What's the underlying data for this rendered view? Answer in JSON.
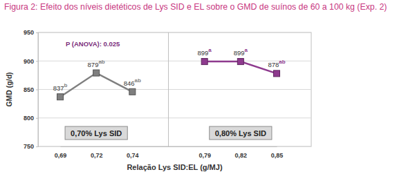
{
  "chart_data": {
    "type": "line",
    "title": "Figura 2: Efeito dos níveis dietéticos de Lys SID e EL sobre o GMD de suínos de 60 a 100 kg (Exp. 2)",
    "x_label": "Relação Lys SID:EL (g/MJ)",
    "y_label": "GMD (g/d)",
    "annotation": "P (ANOVA): 0.025",
    "categories": [
      "0,69",
      "0,72",
      "0,74",
      null,
      "0,79",
      "0,82",
      "0,85"
    ],
    "series": [
      {
        "name": "0,70% Lys SID",
        "color": "#7f7f7f",
        "marker": "square",
        "values": [
          837,
          879,
          846,
          null,
          null,
          null,
          null
        ],
        "significance": [
          "b",
          "ab",
          "ab",
          null,
          null,
          null,
          null
        ]
      },
      {
        "name": "0,80% Lys SID",
        "color": "#8e3a8e",
        "marker": "square",
        "values": [
          null,
          null,
          null,
          null,
          899,
          899,
          878
        ],
        "significance": [
          null,
          null,
          null,
          null,
          "a",
          "a",
          "ab"
        ]
      }
    ],
    "ylim": [
      750,
      950
    ],
    "yticks": [
      750,
      800,
      850,
      900,
      950
    ],
    "grid": true,
    "data_labels": true
  }
}
